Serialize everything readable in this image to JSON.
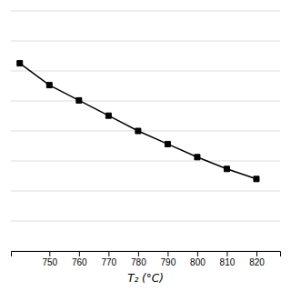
{
  "chart_data": {
    "type": "line",
    "x": [
      740,
      750,
      760,
      770,
      780,
      790,
      800,
      810,
      820
    ],
    "values": [
      0.93,
      0.88,
      0.845,
      0.81,
      0.775,
      0.745,
      0.715,
      0.688,
      0.665
    ],
    "xlabel": "T₂ (°C)",
    "xlim": [
      737,
      828
    ],
    "xticks": [
      750,
      760,
      770,
      780,
      790,
      800,
      810,
      820
    ],
    "ylim": [
      0.5,
      1.05
    ],
    "yticks": [
      0.5,
      0.56875,
      0.6375,
      0.70625,
      0.775,
      0.84375,
      0.9125,
      0.98125,
      1.05
    ],
    "grid": true,
    "tick_labels": "x",
    "color": "#000000",
    "marker": "square"
  }
}
